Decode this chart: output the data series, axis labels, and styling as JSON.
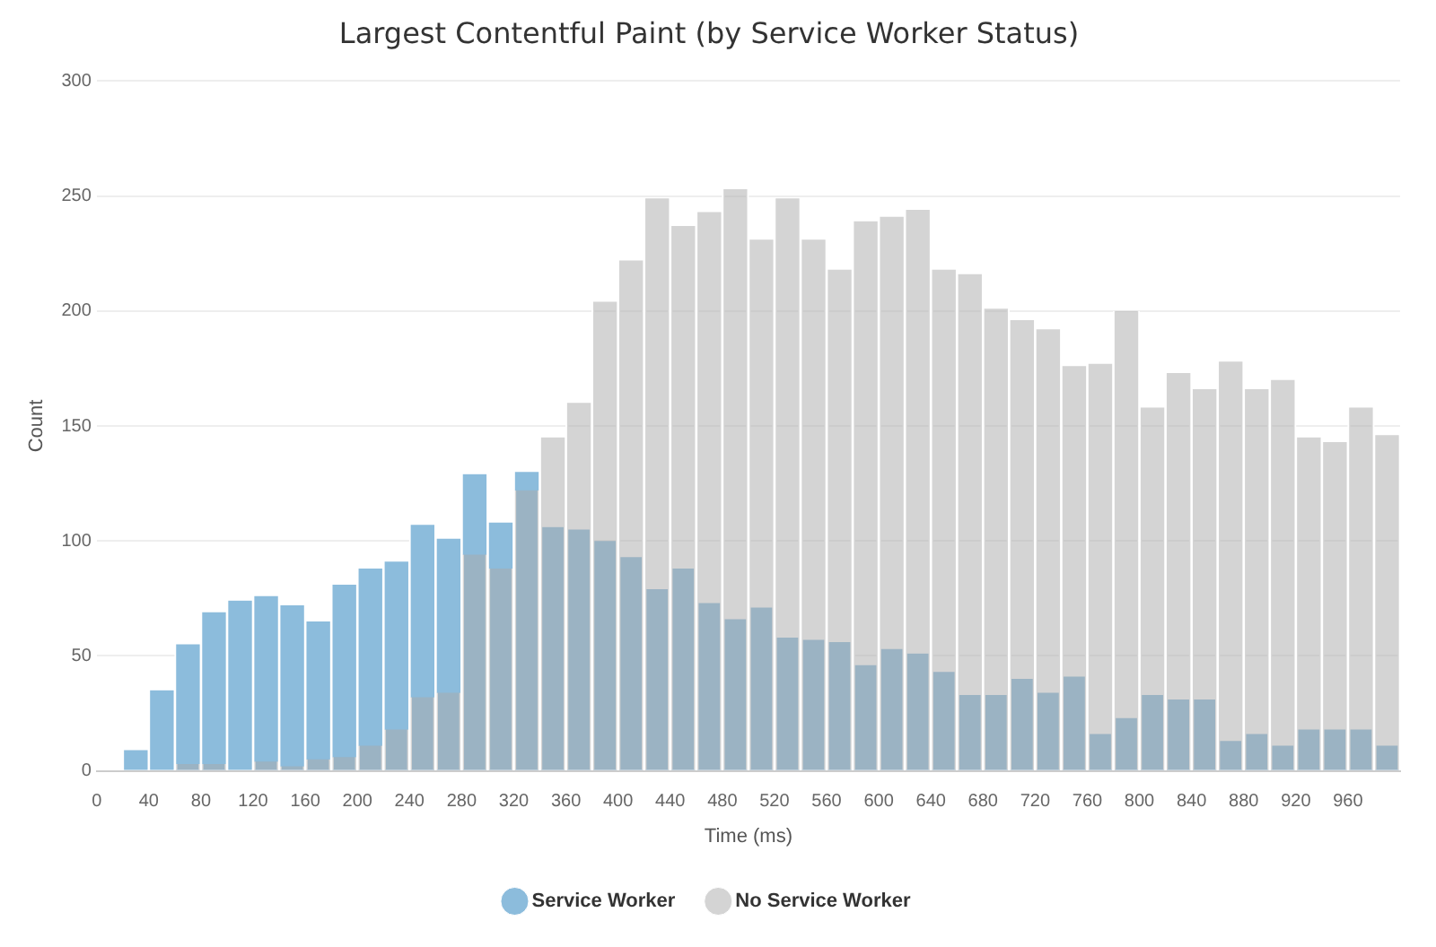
{
  "chart_data": {
    "type": "histogram",
    "title": "Largest Contentful Paint (by Service Worker Status)",
    "xlabel": "Time (ms)",
    "ylabel": "Count",
    "bins": [
      0,
      20,
      40,
      60,
      80,
      100,
      120,
      140,
      160,
      180,
      200,
      220,
      240,
      260,
      280,
      300,
      320,
      340,
      360,
      380,
      400,
      420,
      440,
      460,
      480,
      500,
      520,
      540,
      560,
      580,
      600,
      620,
      640,
      660,
      680,
      700,
      720,
      740,
      760,
      780,
      800,
      820,
      840,
      860,
      880,
      900,
      920,
      940,
      960,
      980,
      1000
    ],
    "series": [
      {
        "name": "Service Worker",
        "color": "#8cbcdc",
        "values": [
          0,
          9,
          35,
          55,
          69,
          74,
          76,
          72,
          65,
          81,
          88,
          91,
          107,
          101,
          129,
          108,
          130,
          106,
          105,
          100,
          93,
          79,
          88,
          73,
          66,
          71,
          58,
          57,
          56,
          46,
          53,
          51,
          43,
          33,
          33,
          40,
          34,
          41,
          16,
          23,
          33,
          31,
          31,
          13,
          16,
          11,
          18,
          18,
          18,
          11
        ]
      },
      {
        "name": "No Service Worker",
        "color": "#d4d4d4",
        "values": [
          0,
          0,
          0,
          3,
          3,
          0,
          4,
          2,
          5,
          6,
          11,
          18,
          32,
          34,
          94,
          88,
          122,
          145,
          160,
          204,
          222,
          249,
          237,
          243,
          253,
          231,
          249,
          231,
          218,
          239,
          241,
          244,
          218,
          216,
          201,
          196,
          192,
          176,
          177,
          200,
          158,
          173,
          166,
          178,
          166,
          170,
          145,
          143,
          158,
          146
        ]
      }
    ],
    "xlim": [
      0,
      1000
    ],
    "xticks": [
      0,
      40,
      80,
      120,
      160,
      200,
      240,
      280,
      320,
      360,
      400,
      440,
      480,
      520,
      560,
      600,
      640,
      680,
      720,
      760,
      800,
      840,
      880,
      920,
      960
    ],
    "ylim": [
      0,
      300
    ],
    "yticks": [
      0,
      50,
      100,
      150,
      200,
      250,
      300
    ],
    "grid": "y",
    "legend": "bottom"
  }
}
